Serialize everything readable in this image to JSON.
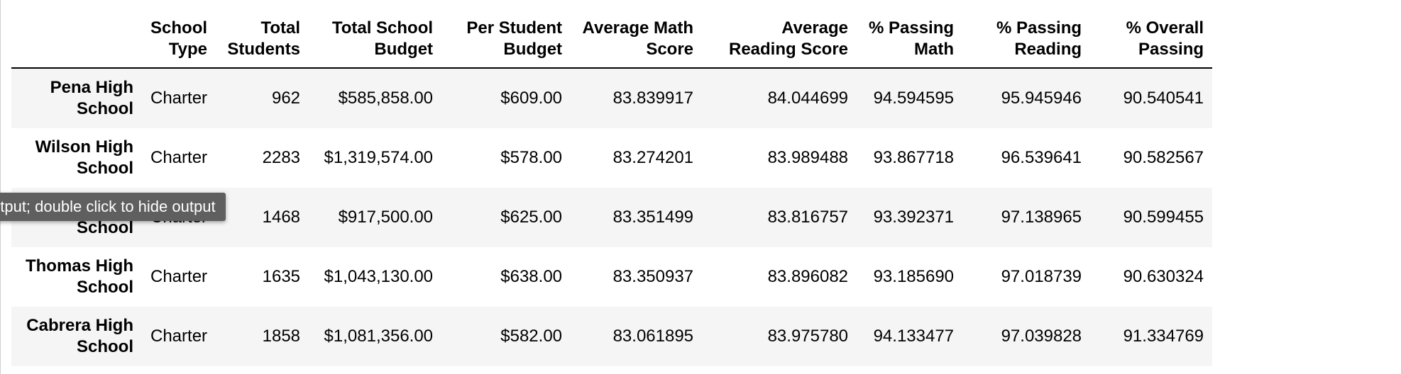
{
  "table": {
    "columns": [
      "School Type",
      "Total Students",
      "Total School Budget",
      "Per Student Budget",
      "Average Math Score",
      "Average Reading Score",
      "% Passing Math",
      "% Passing Reading",
      "% Overall Passing"
    ],
    "rows": [
      {
        "index": "Pena High School",
        "cells": [
          "Charter",
          "962",
          "$585,858.00",
          "$609.00",
          "83.839917",
          "84.044699",
          "94.594595",
          "95.945946",
          "90.540541"
        ]
      },
      {
        "index": "Wilson High School",
        "cells": [
          "Charter",
          "2283",
          "$1,319,574.00",
          "$578.00",
          "83.274201",
          "83.989488",
          "93.867718",
          "96.539641",
          "90.582567"
        ]
      },
      {
        "index": "School",
        "cells": [
          "Charter",
          "1468",
          "$917,500.00",
          "$625.00",
          "83.351499",
          "83.816757",
          "93.392371",
          "97.138965",
          "90.599455"
        ]
      },
      {
        "index": "Thomas High School",
        "cells": [
          "Charter",
          "1635",
          "$1,043,130.00",
          "$638.00",
          "83.350937",
          "83.896082",
          "93.185690",
          "97.018739",
          "90.630324"
        ]
      },
      {
        "index": "Cabrera High School",
        "cells": [
          "Charter",
          "1858",
          "$1,081,356.00",
          "$582.00",
          "83.061895",
          "83.975780",
          "94.133477",
          "97.039828",
          "91.334769"
        ]
      }
    ]
  },
  "tooltip": {
    "text": "utput; double click to hide output"
  },
  "colors": {
    "row_stripe": "#f5f5f5",
    "tooltip_bg": "#5f5f5f",
    "header_rule": "#000000"
  }
}
